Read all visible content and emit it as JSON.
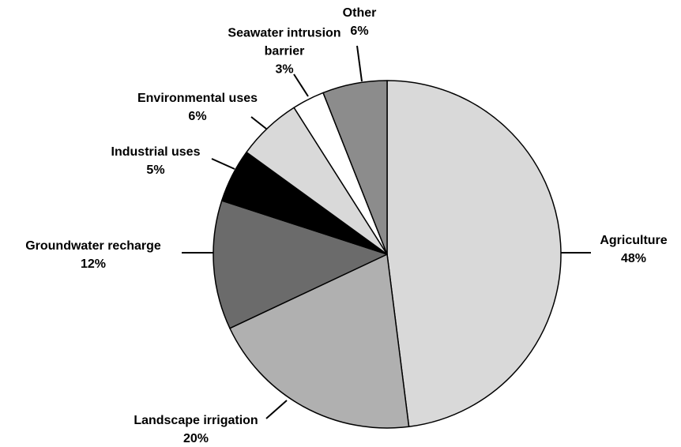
{
  "chart_data": {
    "type": "pie",
    "categories": [
      "Agriculture",
      "Landscape irrigation",
      "Groundwater recharge",
      "Industrial uses",
      "Environmental uses",
      "Seawater intrusion barrier",
      "Other"
    ],
    "values": [
      48,
      20,
      12,
      5,
      6,
      3,
      6
    ],
    "value_labels": [
      "48%",
      "20%",
      "12%",
      "5%",
      "6%",
      "3%",
      "6%"
    ],
    "colors": [
      "#d9d9d9",
      "#b0b0b0",
      "#6b6b6b",
      "#000000",
      "#d9d9d9",
      "#ffffff",
      "#8c8c8c"
    ]
  }
}
